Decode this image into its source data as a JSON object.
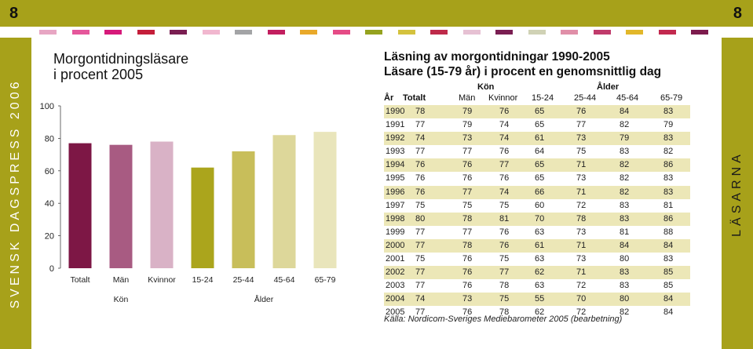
{
  "page_number_left": "8",
  "page_number_right": "8",
  "sidebar_left_text": "SVENSK DAGSPRESS 2006",
  "sidebar_right_text": "LÄSARNA",
  "colors": {
    "olive": "#a7a11a",
    "strip": [
      "#e7a6c3",
      "#e5579b",
      "#d6197a",
      "#c41e3a",
      "#7a1e52",
      "#f1b7cf",
      "#a3a4a6",
      "#c21f5f",
      "#e9a92a",
      "#e54b86",
      "#95a21f",
      "#d4c23e",
      "#be2a4a",
      "#e6c1d3",
      "#7a1e52",
      "#d0d2b5",
      "#e08fa8",
      "#c03b6b",
      "#e2b72a",
      "#c2294f",
      "#7c1b4d"
    ],
    "bars": [
      "#7d1745",
      "#a85b82",
      "#d9b2c6",
      "#aba51c",
      "#c8be5a",
      "#ddd79a",
      "#e9e5bb"
    ],
    "table_shade": "#ece7b7"
  },
  "chart_data": {
    "type": "bar",
    "title": "Morgontidningsläsare i procent 2005",
    "title_lines": [
      "Morgontidningsläsare",
      "i procent 2005"
    ],
    "categories": [
      "Totalt",
      "Män",
      "Kvinnor",
      "15-24",
      "25-44",
      "45-64",
      "65-79"
    ],
    "values": [
      77,
      76,
      78,
      62,
      72,
      82,
      84
    ],
    "group_labels": [
      "Kön",
      "Ålder"
    ],
    "ylim": [
      0,
      100
    ],
    "yticks": [
      0,
      20,
      40,
      60,
      80,
      100
    ],
    "xlabel": "",
    "ylabel": "",
    "grid": false,
    "legend": "none"
  },
  "table": {
    "title_lines": [
      "Läsning av morgontidningar 1990-2005",
      "Läsare (15-79 år) i procent en genomsnittlig dag"
    ],
    "group_headers": [
      "Kön",
      "Ålder"
    ],
    "columns": [
      "År",
      "Totalt",
      "Män",
      "Kvinnor",
      "15-24",
      "25-44",
      "45-64",
      "65-79"
    ],
    "rows": [
      [
        "1990",
        "78",
        "79",
        "76",
        "65",
        "76",
        "84",
        "83"
      ],
      [
        "1991",
        "77",
        "79",
        "74",
        "65",
        "77",
        "82",
        "79"
      ],
      [
        "1992",
        "74",
        "73",
        "74",
        "61",
        "73",
        "79",
        "83"
      ],
      [
        "1993",
        "77",
        "77",
        "76",
        "64",
        "75",
        "83",
        "82"
      ],
      [
        "1994",
        "76",
        "76",
        "77",
        "65",
        "71",
        "82",
        "86"
      ],
      [
        "1995",
        "76",
        "76",
        "76",
        "65",
        "73",
        "82",
        "83"
      ],
      [
        "1996",
        "76",
        "77",
        "74",
        "66",
        "71",
        "82",
        "83"
      ],
      [
        "1997",
        "75",
        "75",
        "75",
        "60",
        "72",
        "83",
        "81"
      ],
      [
        "1998",
        "80",
        "78",
        "81",
        "70",
        "78",
        "83",
        "86"
      ],
      [
        "1999",
        "77",
        "77",
        "76",
        "63",
        "73",
        "81",
        "88"
      ],
      [
        "2000",
        "77",
        "78",
        "76",
        "61",
        "71",
        "84",
        "84"
      ],
      [
        "2001",
        "75",
        "76",
        "75",
        "63",
        "73",
        "80",
        "83"
      ],
      [
        "2002",
        "77",
        "76",
        "77",
        "62",
        "71",
        "83",
        "85"
      ],
      [
        "2003",
        "77",
        "76",
        "78",
        "63",
        "72",
        "83",
        "85"
      ],
      [
        "2004",
        "74",
        "73",
        "75",
        "55",
        "70",
        "80",
        "84"
      ],
      [
        "2005",
        "77",
        "76",
        "78",
        "62",
        "72",
        "82",
        "84"
      ]
    ],
    "source": "Källa: Nordicom-Sveriges Mediebarometer 2005 (bearbetning)"
  }
}
